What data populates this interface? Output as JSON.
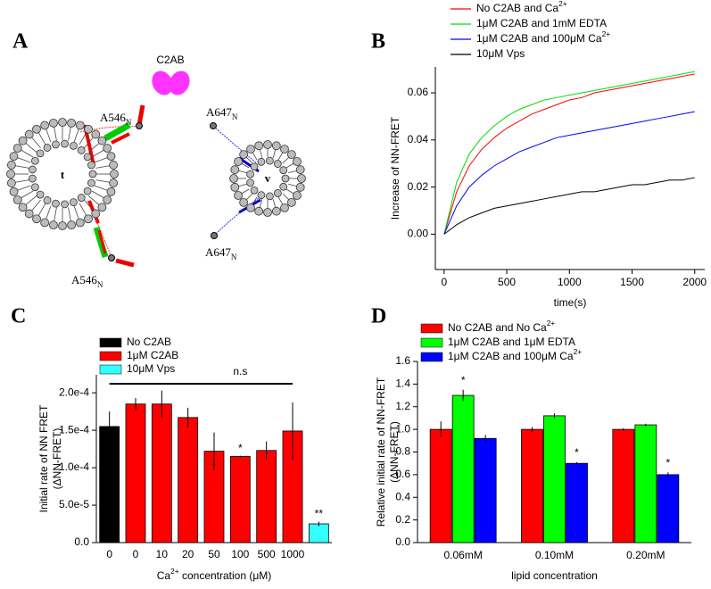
{
  "panels": [
    "A",
    "B",
    "C",
    "D"
  ],
  "diagram": {
    "c2ab": "C2AB",
    "t": "t",
    "v": "v",
    "labels": [
      {
        "text": "A546",
        "sub": "N"
      },
      {
        "text": "A546",
        "sub": "N"
      },
      {
        "text": "A647",
        "sub": "N"
      },
      {
        "text": "A647",
        "sub": "N"
      }
    ]
  },
  "chart_data": [
    {
      "type": "line",
      "xlabel": "time(s)",
      "ylabel": "Increase of NN-FRET",
      "x": [
        0,
        100,
        200,
        300,
        400,
        500,
        600,
        700,
        800,
        900,
        1000,
        1100,
        1200,
        1300,
        1400,
        1500,
        1600,
        1700,
        1800,
        1900,
        2000
      ],
      "series": [
        {
          "name": "No C2AB and Ca2+",
          "color": "#ff0000",
          "values": [
            0,
            0.018,
            0.029,
            0.036,
            0.041,
            0.045,
            0.048,
            0.051,
            0.053,
            0.055,
            0.057,
            0.058,
            0.06,
            0.061,
            0.062,
            0.063,
            0.064,
            0.065,
            0.066,
            0.067,
            0.068
          ]
        },
        {
          "name": "1μM C2AB and 1mM EDTA",
          "color": "#00dd00",
          "values": [
            0,
            0.022,
            0.034,
            0.041,
            0.046,
            0.05,
            0.053,
            0.055,
            0.057,
            0.058,
            0.059,
            0.06,
            0.061,
            0.062,
            0.063,
            0.064,
            0.065,
            0.066,
            0.067,
            0.068,
            0.069
          ]
        },
        {
          "name": "1μM C2AB and 100μM Ca2+",
          "color": "#0000ff",
          "values": [
            0,
            0.012,
            0.02,
            0.025,
            0.029,
            0.032,
            0.035,
            0.037,
            0.039,
            0.041,
            0.042,
            0.043,
            0.044,
            0.045,
            0.046,
            0.047,
            0.048,
            0.049,
            0.05,
            0.051,
            0.052
          ]
        },
        {
          "name": "10μM Vps",
          "color": "#000000",
          "values": [
            0,
            0.004,
            0.007,
            0.009,
            0.011,
            0.012,
            0.013,
            0.014,
            0.015,
            0.016,
            0.017,
            0.018,
            0.018,
            0.019,
            0.02,
            0.021,
            0.021,
            0.022,
            0.023,
            0.023,
            0.024
          ]
        }
      ],
      "xlim": [
        -70,
        2080
      ],
      "xticks": [
        0,
        500,
        1000,
        1500,
        2000
      ],
      "ylim": [
        -0.015,
        0.071
      ],
      "yticks": [
        {
          "value": 0,
          "label": "0.00"
        },
        {
          "value": 0.02,
          "label": "0.02"
        },
        {
          "value": 0.04,
          "label": "0.04"
        },
        {
          "value": 0.06,
          "label": "0.06"
        }
      ]
    },
    {
      "type": "bar",
      "xlabel": "Ca2+ concentration (μM)",
      "ylabel": [
        "Initial rate of NN FRET",
        "(ΔNN-FRET)"
      ],
      "categories": [
        "0",
        "0",
        "10",
        "20",
        "50",
        "100",
        "500",
        "1000",
        null
      ],
      "values": [
        0.000155,
        0.000185,
        0.000185,
        0.000167,
        0.000122,
        0.000115,
        0.000123,
        0.000149,
        2.5e-05
      ],
      "errors": [
        2e-05,
        8e-06,
        1.8e-05,
        1.3e-05,
        2.5e-05,
        1e-06,
        1.2e-05,
        3.8e-05,
        3e-06
      ],
      "colors": [
        "#000000",
        "#ff0000",
        "#ff0000",
        "#ff0000",
        "#ff0000",
        "#ff0000",
        "#ff0000",
        "#ff0000",
        "#33ffff"
      ],
      "legend": [
        {
          "name": "No C2AB",
          "color": "#000000"
        },
        {
          "name": "1μM C2AB",
          "color": "#ff0000"
        },
        {
          "name": "10μM Vps",
          "color": "#33ffff"
        }
      ],
      "annotations": [
        "n.s",
        "*",
        "**"
      ],
      "ylim": [
        0,
        0.000224
      ],
      "yticks": [
        {
          "value": 0,
          "label": "0.0"
        },
        {
          "value": 5e-05,
          "label": "5.0e-5"
        },
        {
          "value": 0.0001,
          "label": "1.0e-4"
        },
        {
          "value": 0.00015,
          "label": "1.5e-4"
        },
        {
          "value": 0.0002,
          "label": "2.0e-4"
        }
      ]
    },
    {
      "type": "grouped_bar",
      "xlabel": "lipid concentration",
      "ylabel": [
        "Relative initial rate of NN-FRET",
        "(ΔNN-FRET)"
      ],
      "categories": [
        "0.06mM",
        "0.10mM",
        "0.20mM"
      ],
      "series": [
        {
          "name": "No C2AB and No Ca2+",
          "color": "#ff0000",
          "values": [
            1.0,
            1.0,
            1.0
          ],
          "errors": [
            0.07,
            0.02,
            0.01
          ]
        },
        {
          "name": "1μM C2AB and 1μM EDTA",
          "color": "#00ff00",
          "values": [
            1.3,
            1.12,
            1.04
          ],
          "errors": [
            0.05,
            0.02,
            0.01
          ]
        },
        {
          "name": "1μM C2AB and 100μM Ca2+",
          "color": "#0000ff",
          "values": [
            0.92,
            0.7,
            0.6
          ],
          "errors": [
            0.03,
            0.01,
            0.02
          ]
        }
      ],
      "annotations": [
        "*",
        "*",
        "*"
      ],
      "ylim": [
        0,
        1.6
      ],
      "yticks": [
        {
          "value": 0,
          "label": "0.0"
        },
        {
          "value": 0.2,
          "label": "0.2"
        },
        {
          "value": 0.4,
          "label": "0.4"
        },
        {
          "value": 0.6,
          "label": "0.6"
        },
        {
          "value": 0.8,
          "label": "0.8"
        },
        {
          "value": 1.0,
          "label": "1.0"
        },
        {
          "value": 1.2,
          "label": "1.2"
        },
        {
          "value": 1.4,
          "label": "1.4"
        },
        {
          "value": 1.6,
          "label": "1.6"
        }
      ]
    }
  ]
}
